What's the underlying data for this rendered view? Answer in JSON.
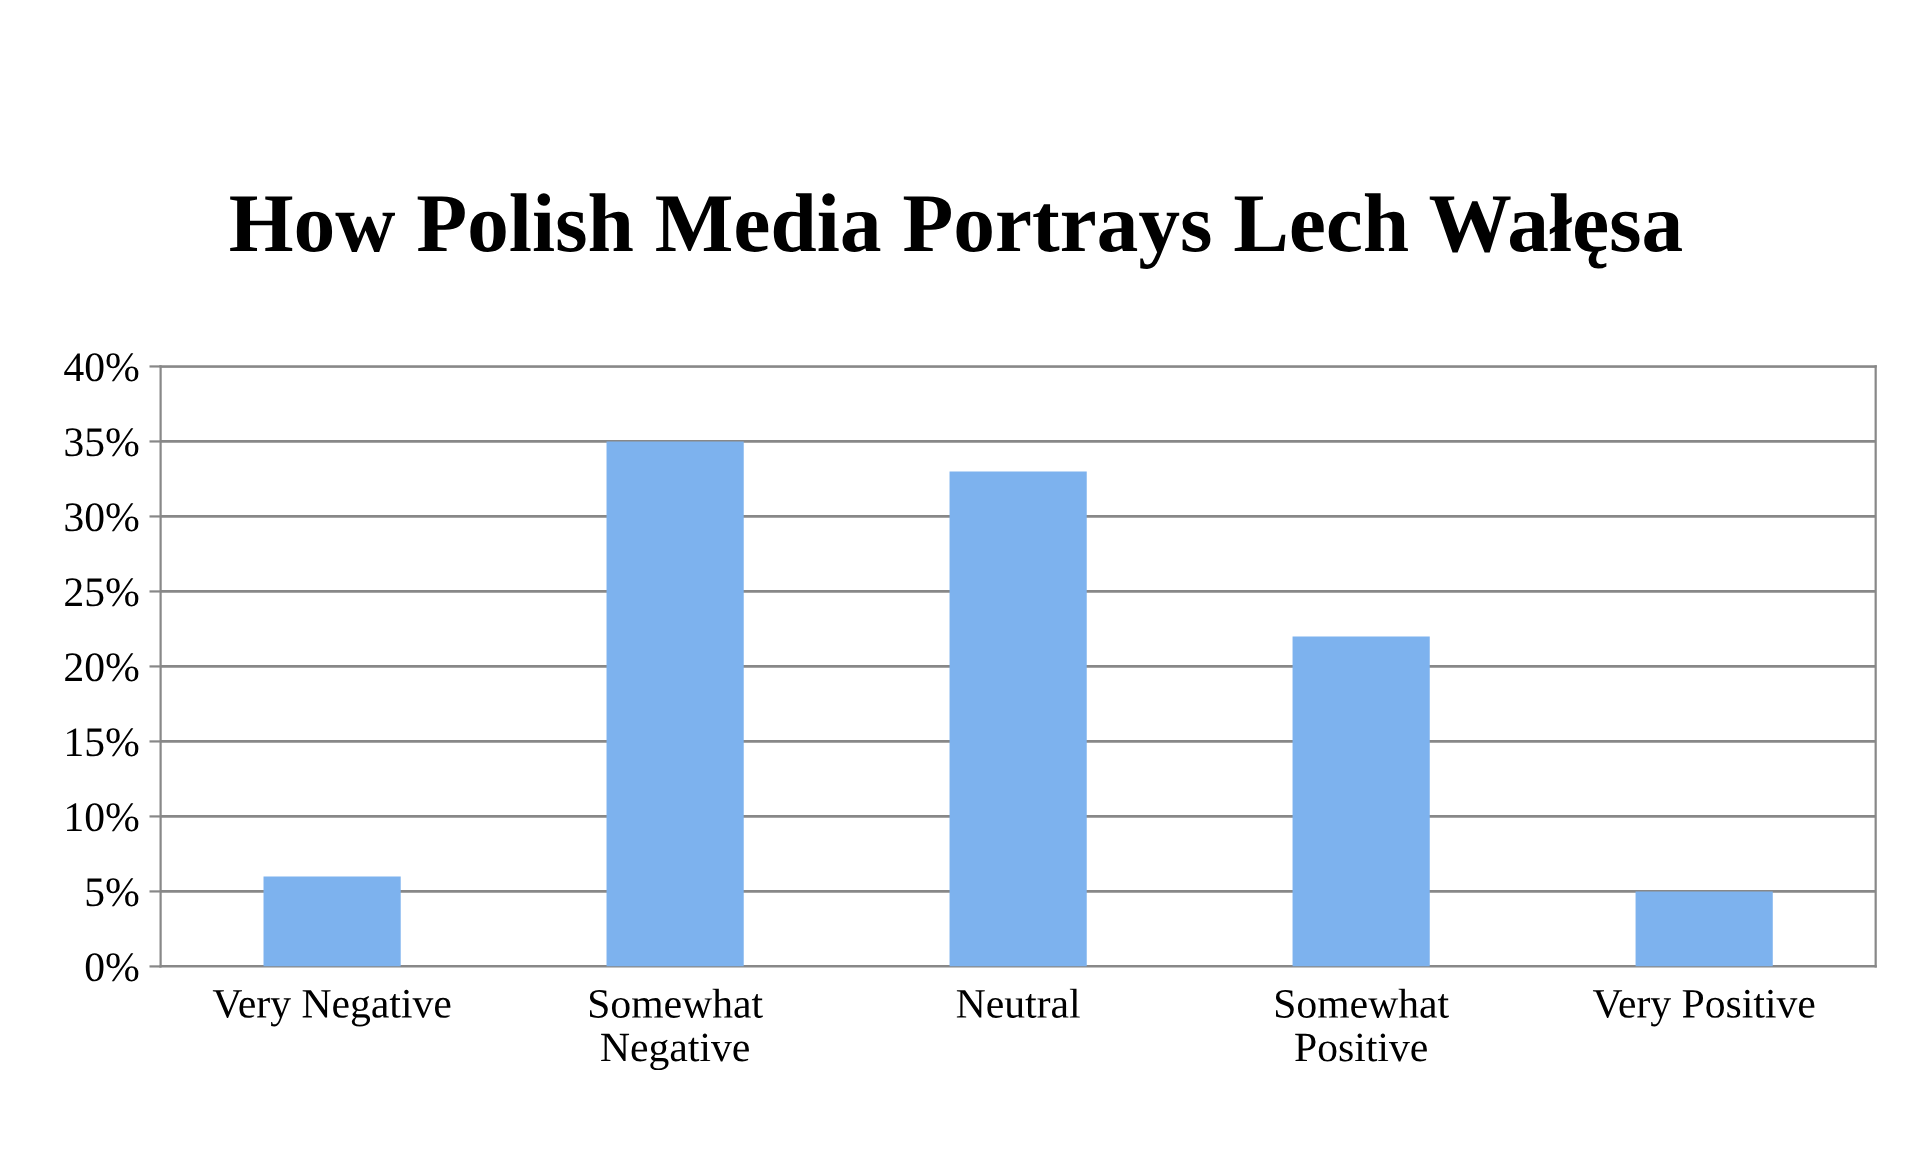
{
  "chart_data": {
    "type": "bar",
    "title": "How Polish Media Portrays Lech Wałęsa",
    "categories": [
      "Very Negative",
      "Somewhat\nNegative",
      "Neutral",
      "Somewhat\nPositive",
      "Very Positive"
    ],
    "values": [
      6,
      35,
      33,
      22,
      5
    ],
    "color": "#7db2ee",
    "ylim": [
      0,
      40
    ],
    "yticks": [
      {
        "value": 0,
        "label": "0%"
      },
      {
        "value": 5,
        "label": "5%"
      },
      {
        "value": 10,
        "label": "10%"
      },
      {
        "value": 15,
        "label": "15%"
      },
      {
        "value": 20,
        "label": "20%"
      },
      {
        "value": 25,
        "label": "25%"
      },
      {
        "value": 30,
        "label": "30%"
      },
      {
        "value": 35,
        "label": "35%"
      },
      {
        "value": 40,
        "label": "40%"
      }
    ],
    "grid": "y",
    "legend": false
  }
}
